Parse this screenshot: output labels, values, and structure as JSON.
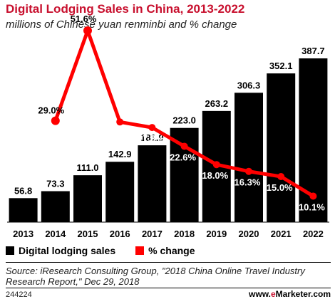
{
  "header": {
    "title": "Digital Lodging Sales in China, 2013-2022",
    "subtitle": "millions of Chinese yuan renminbi and % change"
  },
  "legend": {
    "bars_label": "Digital lodging sales",
    "line_label": "% change"
  },
  "colors": {
    "bar": "#000000",
    "line": "#ff0000",
    "title": "#c8102e"
  },
  "footer": {
    "source": "Source: iResearch Consulting Group, \"2018 China Online Travel Industry Research Report,\" Dec 29, 2018",
    "id": "244224",
    "brand_prefix": "www.",
    "brand_e": "e",
    "brand_rest": "Marketer.com"
  },
  "chart_data": {
    "type": "bar",
    "categories": [
      "2013",
      "2014",
      "2015",
      "2016",
      "2017",
      "2018",
      "2019",
      "2020",
      "2021",
      "2022"
    ],
    "series": [
      {
        "name": "Digital lodging sales",
        "type": "bar",
        "values": [
          56.8,
          73.3,
          111.0,
          142.9,
          181.9,
          223.0,
          263.2,
          306.3,
          352.1,
          387.7
        ],
        "labels": [
          "56.8",
          "73.3",
          "111.0",
          "142.9",
          "181.9",
          "223.0",
          "263.2",
          "306.3",
          "352.1",
          "387.7"
        ]
      },
      {
        "name": "% change",
        "type": "line",
        "values": [
          null,
          29.0,
          51.6,
          28.7,
          27.3,
          22.6,
          18.0,
          16.3,
          15.0,
          10.1
        ],
        "labels": [
          "",
          "29.0%",
          "51.6%",
          "28.7%",
          "27.3%",
          "22.6%",
          "18.0%",
          "16.3%",
          "15.0%",
          "10.1%"
        ]
      }
    ],
    "bar_ylim": [
      0,
      387.7
    ],
    "line_ylim": [
      0,
      100
    ],
    "grid": false
  }
}
